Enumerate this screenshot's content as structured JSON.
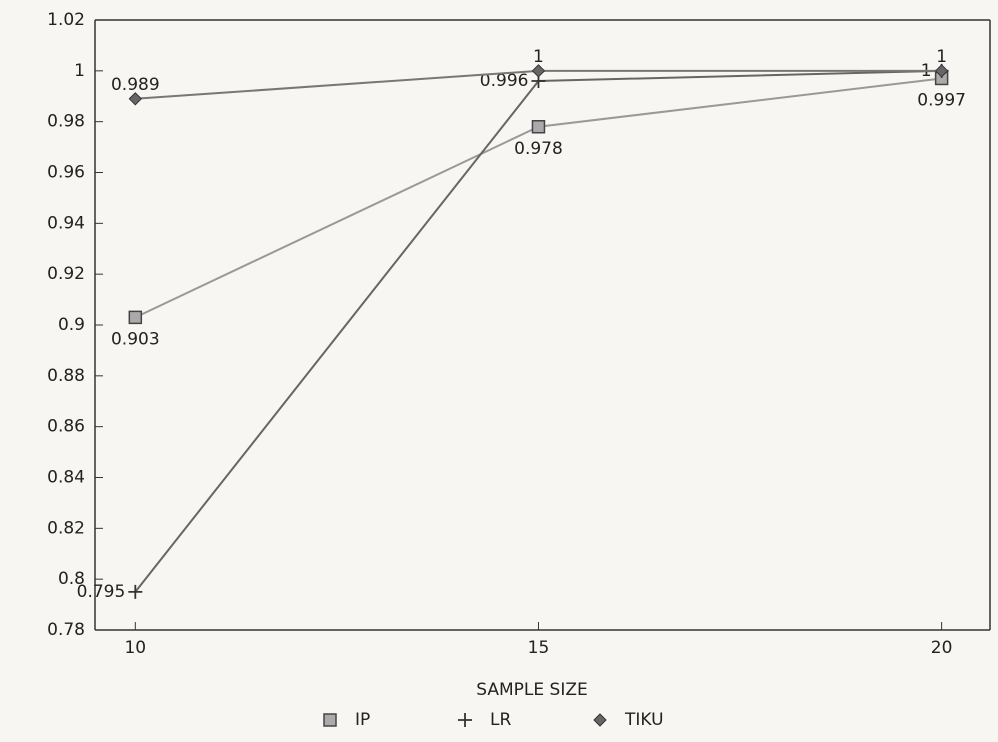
{
  "chart_data": {
    "type": "line",
    "x_label": "SAMPLE SIZE",
    "x": [
      10,
      15,
      20
    ],
    "xlim": [
      9.5,
      20.6
    ],
    "xticks": [
      10,
      15,
      20
    ],
    "ylim": [
      0.78,
      1.02
    ],
    "yticks": [
      0.78,
      0.8,
      0.82,
      0.84,
      0.86,
      0.88,
      0.9,
      0.92,
      0.94,
      0.96,
      0.98,
      1,
      1.02
    ],
    "series": [
      {
        "name": "IP",
        "color": "#999999",
        "marker": "square",
        "values": [
          0.903,
          0.978,
          0.997
        ]
      },
      {
        "name": "LR",
        "color": "#666666",
        "marker": "plus",
        "values": [
          0.795,
          0.996,
          1
        ]
      },
      {
        "name": "TIKU",
        "color": "#777777",
        "marker": "diamond",
        "values": [
          0.989,
          1,
          1
        ]
      }
    ]
  }
}
